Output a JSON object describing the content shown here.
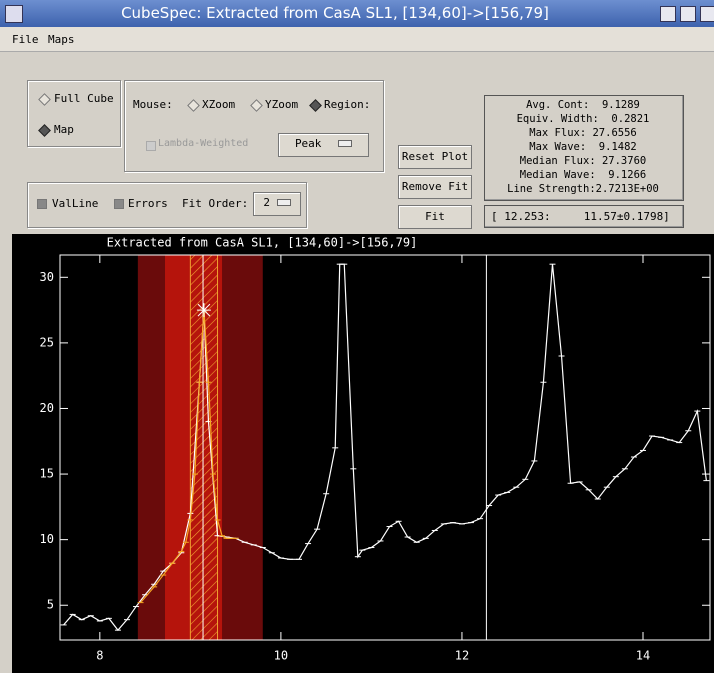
{
  "window": {
    "title": "CubeSpec: Extracted from CasA SL1, [134,60]->[156,79]"
  },
  "menu": [
    "File",
    "Maps"
  ],
  "mode": {
    "options": [
      "Full Cube",
      "Map"
    ],
    "selected": 1
  },
  "mouse": {
    "label": "Mouse:",
    "options": [
      "XZoom",
      "YZoom",
      "Region:"
    ],
    "selected": 2,
    "lambda_weighted": "Lambda-Weighted",
    "region_type": "Peak"
  },
  "options": {
    "val_line": "ValLine",
    "errors": "Errors",
    "fit_order_label": "Fit Order:",
    "fit_order": 2
  },
  "buttons": [
    "Reset Plot",
    "Remove Fit",
    "Fit"
  ],
  "stats": [
    "Avg. Cont:  9.1289",
    "Equiv. Width:  0.2821",
    "Max Flux: 27.6556",
    "Max Wave:  9.1482",
    "Median Flux: 27.3760",
    "Median Wave:  9.1266",
    "Line Strength:2.7213E+00"
  ],
  "readout": "[ 12.253:     11.57±0.1798]",
  "chart_data": {
    "type": "line",
    "title": "Extracted from CasA SL1, [134,60]->[156,79]",
    "xlim": [
      7.56,
      14.74
    ],
    "ylim": [
      2.35,
      31.7
    ],
    "xticks": [
      8,
      10,
      12,
      14
    ],
    "yticks": [
      5,
      10,
      15,
      20,
      25,
      30
    ],
    "regions": [
      {
        "range": [
          8.42,
          9.8
        ],
        "color": "#6a0b0b"
      },
      {
        "range": [
          8.72,
          9.35
        ],
        "color": "#b5140c"
      }
    ],
    "fit_region": {
      "range": [
        9.0,
        9.3
      ],
      "color": "#f0a030"
    },
    "markers_x": [
      9.14,
      12.27
    ],
    "peak": {
      "x": 9.15,
      "y": 27.5
    },
    "series": [
      {
        "color": "#ffffff",
        "x": [
          7.6,
          7.7,
          7.8,
          7.9,
          8.0,
          8.1,
          8.2,
          8.3,
          8.4,
          8.5,
          8.6,
          8.7,
          8.8,
          8.9,
          9.0,
          9.1,
          9.15,
          9.2,
          9.3,
          9.4,
          9.5,
          9.6,
          9.7,
          9.8,
          9.9,
          10.0,
          10.1,
          10.2,
          10.3,
          10.4,
          10.5,
          10.6,
          10.65,
          10.7,
          10.8,
          10.85,
          10.9,
          11.0,
          11.1,
          11.2,
          11.3,
          11.4,
          11.5,
          11.6,
          11.7,
          11.8,
          11.9,
          12.0,
          12.1,
          12.2,
          12.3,
          12.4,
          12.5,
          12.6,
          12.7,
          12.8,
          12.9,
          13.0,
          13.1,
          13.2,
          13.3,
          13.4,
          13.5,
          13.6,
          13.7,
          13.8,
          13.9,
          14.0,
          14.1,
          14.2,
          14.3,
          14.4,
          14.5,
          14.6,
          14.7
        ],
        "values": [
          3.5,
          4.3,
          3.9,
          4.2,
          3.8,
          4.0,
          3.1,
          3.9,
          4.9,
          5.8,
          6.6,
          7.6,
          8.2,
          9.0,
          12.0,
          22.0,
          27.5,
          19.0,
          10.3,
          10.2,
          10.1,
          9.8,
          9.6,
          9.4,
          9.0,
          8.6,
          8.5,
          8.5,
          9.7,
          10.8,
          13.5,
          17.0,
          31.0,
          31.0,
          15.4,
          8.7,
          9.2,
          9.4,
          9.9,
          11.0,
          11.4,
          10.2,
          9.8,
          10.1,
          10.7,
          11.2,
          11.3,
          11.2,
          11.3,
          11.6,
          12.6,
          13.4,
          13.6,
          14.0,
          14.6,
          16.0,
          22.0,
          31.0,
          24.0,
          14.3,
          14.4,
          13.8,
          13.1,
          14.0,
          14.8,
          15.4,
          16.3,
          16.8,
          17.9,
          17.8,
          17.6,
          17.4,
          18.3,
          19.8,
          14.5
        ]
      },
      {
        "color": "#f5a623",
        "x": [
          8.45,
          8.6,
          8.7,
          8.8,
          8.9,
          8.95,
          9.0,
          9.05,
          9.1,
          9.15,
          9.2,
          9.25,
          9.3,
          9.35,
          9.4,
          9.5
        ],
        "values": [
          5.2,
          6.4,
          7.3,
          8.2,
          9.1,
          9.8,
          11.5,
          15.0,
          22.0,
          27.5,
          22.0,
          15.0,
          11.5,
          10.3,
          10.1,
          10.1
        ]
      }
    ]
  }
}
